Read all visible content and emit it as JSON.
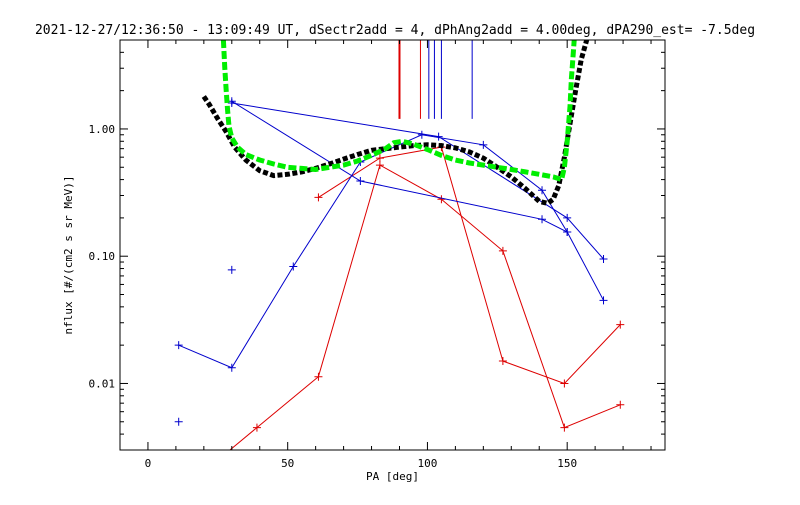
{
  "chart_data": {
    "type": "line",
    "title": "2021-12-27/12:36:50 - 13:09:49 UT, dSectr2add = 4, dPhAng2add = 4.00deg, dPA290_est=  -7.5deg",
    "xlabel": "PA [deg]",
    "ylabel": "nflux [#/(cm2 s sr MeV)]",
    "xlim": [
      -10,
      185
    ],
    "ylim": [
      0.003,
      5
    ],
    "yscale": "log",
    "x_ticks": [
      0,
      50,
      100,
      150
    ],
    "x_tick_labels": [
      "0",
      "50",
      "100",
      "150"
    ],
    "y_ticks": [
      0.01,
      0.1,
      1.0
    ],
    "y_tick_labels": [
      "0.01",
      "0.10",
      "1.00"
    ],
    "grid": false,
    "legend": "none",
    "colors": {
      "red": "#dd0000",
      "blue": "#0000cc",
      "black": "#000000",
      "green": "#00ee00"
    },
    "series": [
      {
        "color": "red",
        "style": "line-plus",
        "x": [
          25,
          39,
          61,
          83,
          105,
          127,
          149,
          169
        ],
        "y": [
          0.0025,
          0.0045,
          0.0113,
          0.52,
          0.28,
          0.11,
          0.0045,
          0.0068
        ]
      },
      {
        "color": "red",
        "style": "line-plus",
        "x": [
          61,
          83,
          105,
          127,
          149,
          169
        ],
        "y": [
          0.29,
          0.59,
          0.72,
          0.015,
          0.01,
          0.029
        ]
      },
      {
        "color": "blue",
        "style": "line-plus",
        "x": [
          11,
          30,
          52,
          76,
          98,
          120,
          141,
          150
        ],
        "y": [
          0.02,
          0.0133,
          0.083,
          0.55,
          0.9,
          0.75,
          0.33,
          0.155
        ]
      },
      {
        "color": "blue",
        "style": "line-plus",
        "x": [
          30,
          76,
          141,
          150,
          163
        ],
        "y": [
          1.65,
          0.39,
          0.195,
          0.155,
          0.045
        ]
      },
      {
        "color": "blue",
        "style": "line-plus",
        "x": [
          30,
          104,
          150,
          163
        ],
        "y": [
          1.6,
          0.87,
          0.2,
          0.095
        ]
      },
      {
        "color": "blue",
        "style": "plus",
        "x": [
          11,
          30
        ],
        "y": [
          0.005,
          0.078
        ]
      },
      {
        "color": "black",
        "style": "thick-dotted",
        "x": [
          20,
          22,
          25,
          28,
          31,
          35,
          40,
          45,
          50,
          55,
          60,
          65,
          70,
          75,
          80,
          85,
          90,
          95,
          100,
          105,
          110,
          115,
          120,
          125,
          130,
          135,
          140,
          143,
          145,
          147,
          149,
          151,
          153,
          155,
          157
        ],
        "y": [
          1.8,
          1.55,
          1.2,
          0.95,
          0.72,
          0.57,
          0.47,
          0.43,
          0.44,
          0.46,
          0.49,
          0.53,
          0.58,
          0.63,
          0.68,
          0.7,
          0.72,
          0.74,
          0.75,
          0.74,
          0.71,
          0.66,
          0.59,
          0.5,
          0.42,
          0.34,
          0.27,
          0.26,
          0.28,
          0.36,
          0.6,
          1.1,
          2.0,
          3.5,
          5.0
        ]
      },
      {
        "color": "green",
        "style": "thick-dashed",
        "x": [
          27,
          27.5,
          28,
          28.5,
          29,
          30,
          32,
          35,
          40,
          45,
          50,
          55,
          60,
          65,
          70,
          75,
          80,
          85,
          88,
          91,
          95,
          100,
          105,
          110,
          115,
          120,
          125,
          130,
          135,
          140,
          145,
          148,
          149,
          150,
          151,
          151.5,
          152,
          152.5
        ],
        "y": [
          5.0,
          3.0,
          2.0,
          1.4,
          1.05,
          0.85,
          0.72,
          0.63,
          0.57,
          0.53,
          0.5,
          0.49,
          0.48,
          0.5,
          0.52,
          0.56,
          0.62,
          0.7,
          0.78,
          0.8,
          0.76,
          0.69,
          0.62,
          0.57,
          0.54,
          0.52,
          0.5,
          0.48,
          0.46,
          0.44,
          0.42,
          0.4,
          0.5,
          0.8,
          1.5,
          2.5,
          3.5,
          5.0
        ]
      }
    ],
    "vertical_markers": [
      {
        "x": 90,
        "color": "red",
        "y_top": 5.0,
        "y_bottom": 1.2,
        "width": 2
      },
      {
        "x": 97.5,
        "color": "red",
        "y_top": 5.0,
        "y_bottom": 1.2,
        "width": 1
      },
      {
        "x": 100.5,
        "color": "blue",
        "y_top": 5.0,
        "y_bottom": 1.2,
        "width": 1
      },
      {
        "x": 102.5,
        "color": "blue",
        "y_top": 5.0,
        "y_bottom": 1.2,
        "width": 1
      },
      {
        "x": 105,
        "color": "blue",
        "y_top": 5.0,
        "y_bottom": 1.2,
        "width": 1
      },
      {
        "x": 116,
        "color": "blue",
        "y_top": 5.0,
        "y_bottom": 1.2,
        "width": 1
      }
    ]
  }
}
